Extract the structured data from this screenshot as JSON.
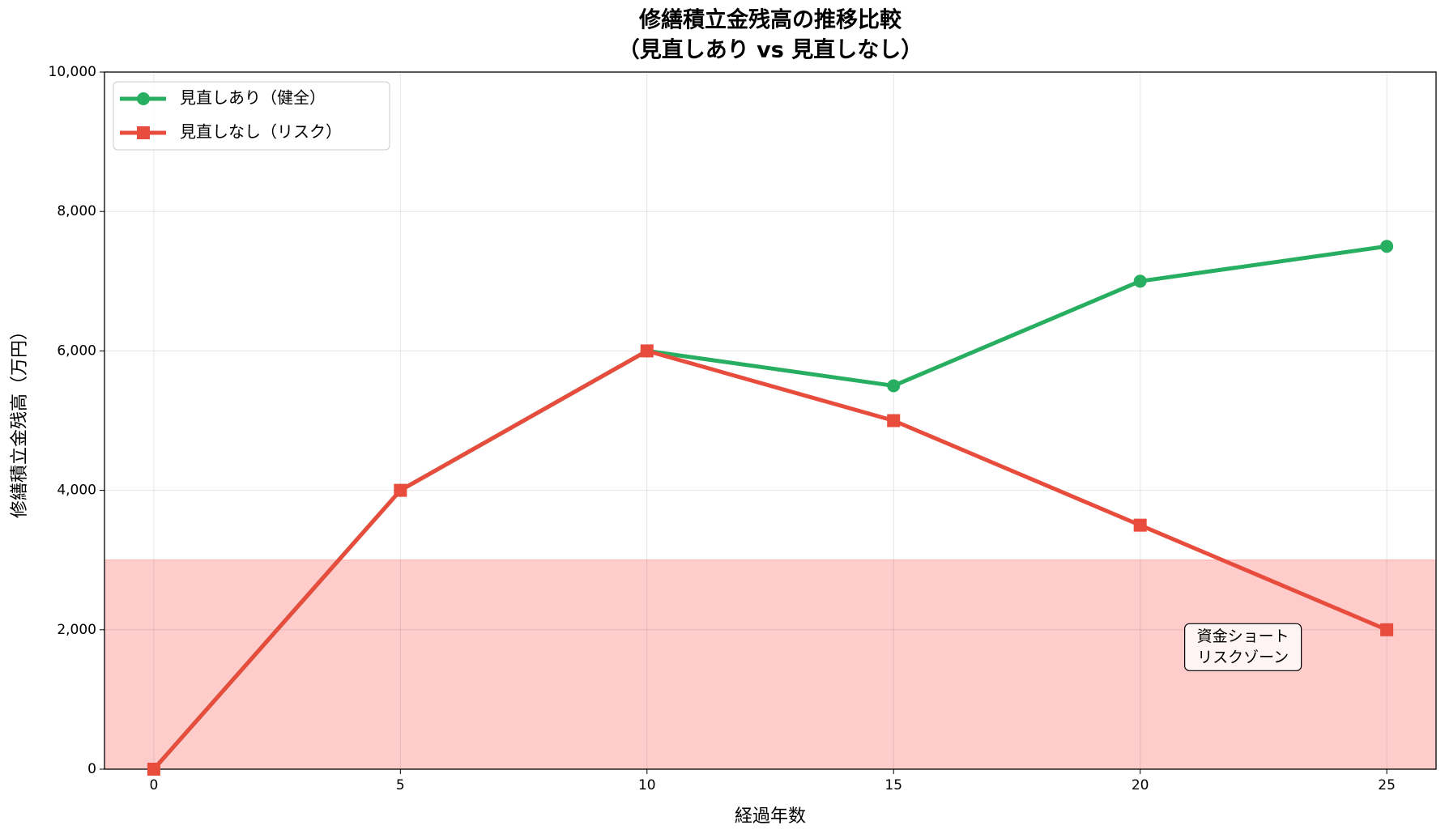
{
  "chart_data": {
    "type": "line",
    "title": [
      "修繕積立金残高の推移比較",
      "（見直しあり vs 見直しなし）"
    ],
    "x_label": "経過年数",
    "y_label": "修繕積立金残高（万円）",
    "x": [
      0,
      5,
      10,
      15,
      20,
      25
    ],
    "series": [
      {
        "name": "見直しあり（健全）",
        "color": "#27ae60",
        "marker": "circle",
        "values": [
          0,
          4000,
          6000,
          5500,
          7000,
          7500
        ]
      },
      {
        "name": "見直しなし（リスク）",
        "color": "#e74c3c",
        "marker": "square",
        "values": [
          0,
          4000,
          6000,
          5000,
          3500,
          2000
        ]
      }
    ],
    "xlim": [
      -1,
      26
    ],
    "xticks": [
      0,
      5,
      10,
      15,
      20,
      25
    ],
    "ylim": [
      0,
      10000
    ],
    "yticks": [
      0,
      {
        "value": 2000,
        "label": "2,000"
      },
      {
        "value": 4000,
        "label": "4,000"
      },
      {
        "value": 6000,
        "label": "6,000"
      },
      {
        "value": 8000,
        "label": "8,000"
      },
      {
        "value": 10000,
        "label": "10,000"
      }
    ],
    "risk_zone": {
      "range": [
        0,
        3000
      ],
      "color": "#ff9999"
    },
    "annotation": [
      "資金ショート",
      "リスクゾーン"
    ],
    "grid": true,
    "legend": "upper left"
  }
}
